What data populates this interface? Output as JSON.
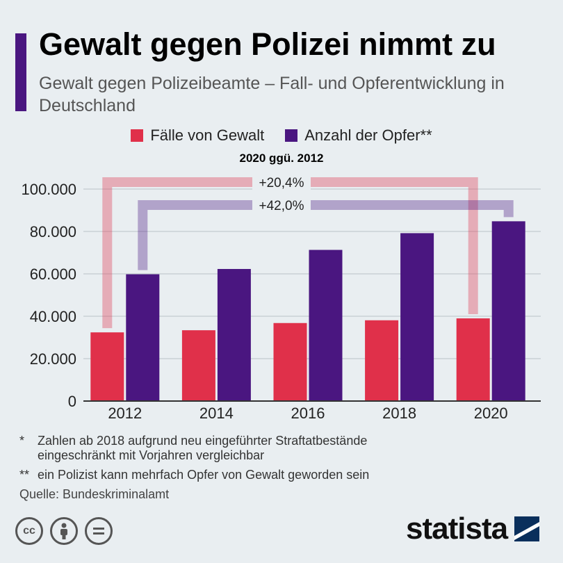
{
  "header": {
    "title": "Gewalt gegen Polizei nimmt zu",
    "subtitle": "Gewalt gegen Polizeibeamte – Fall- und Opferentwicklung in Deutschland"
  },
  "colors": {
    "series_cases": "#e0304a",
    "series_victims": "#4a1680",
    "accent_bar": "#4a1680",
    "background": "#e9eef1"
  },
  "chart_data": {
    "type": "bar",
    "categories": [
      "2012",
      "2014",
      "2016",
      "2018",
      "2020"
    ],
    "series": [
      {
        "name": "Fälle von Gewalt",
        "values": [
          32400,
          33400,
          36800,
          38100,
          39000
        ]
      },
      {
        "name": "Anzahl der Opfer**",
        "values": [
          59800,
          62300,
          71300,
          79200,
          84800
        ]
      }
    ],
    "ylim": [
      0,
      100000
    ],
    "yticks": [
      0,
      20000,
      40000,
      60000,
      80000,
      100000
    ],
    "ytick_labels": [
      "0",
      "20.000",
      "40.000",
      "60.000",
      "80.000",
      "100.000"
    ],
    "grid": true,
    "legend_position": "top-center",
    "comparison": {
      "title": "2020 ggü. 2012",
      "cases_change": "+20,4%",
      "victims_change": "+42,0%"
    }
  },
  "footnotes": [
    {
      "mark": "*",
      "text": "Zahlen ab 2018 aufgrund neu eingeführter Straftatbestände",
      "text2": "eingeschränkt mit Vorjahren vergleichbar"
    },
    {
      "mark": "**",
      "text": "ein Polizist kann mehrfach Opfer von Gewalt geworden sein"
    }
  ],
  "source": "Quelle: Bundeskriminalamt",
  "license_icons": [
    "cc-icon",
    "by-icon",
    "nd-icon"
  ],
  "logo": {
    "text": "statista"
  }
}
